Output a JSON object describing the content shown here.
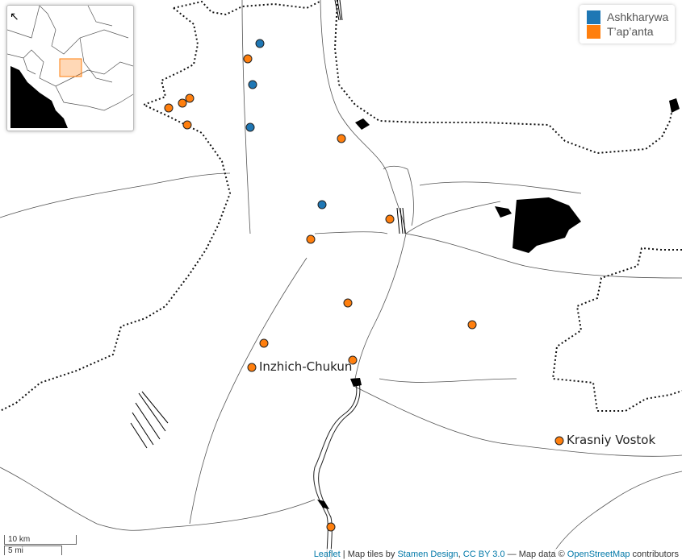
{
  "legend": {
    "items": [
      {
        "label": "Ashkharywa",
        "color": "#1f77b4"
      },
      {
        "label": "T’ap’anta",
        "color": "#ff7f0e"
      }
    ]
  },
  "places": [
    {
      "label": "Inzhich-Chukun"
    },
    {
      "label": "Krasniy Vostok"
    }
  ],
  "scale": {
    "metric": "10 km",
    "imperial": "5 mi"
  },
  "attribution": {
    "leaflet": "Leaflet",
    "tiles_prefix": "| Map tiles by",
    "stamen": "Stamen Design",
    "cc": "CC BY 3.0",
    "osm_prefix": "— Map data ©",
    "osm": "OpenStreetMap",
    "suffix": "contributors"
  },
  "colors": {
    "ashkharywa": "#1f77b4",
    "tapanta": "#ff7f0e"
  },
  "inset_toggle_icon": "arrow-northwest-icon"
}
